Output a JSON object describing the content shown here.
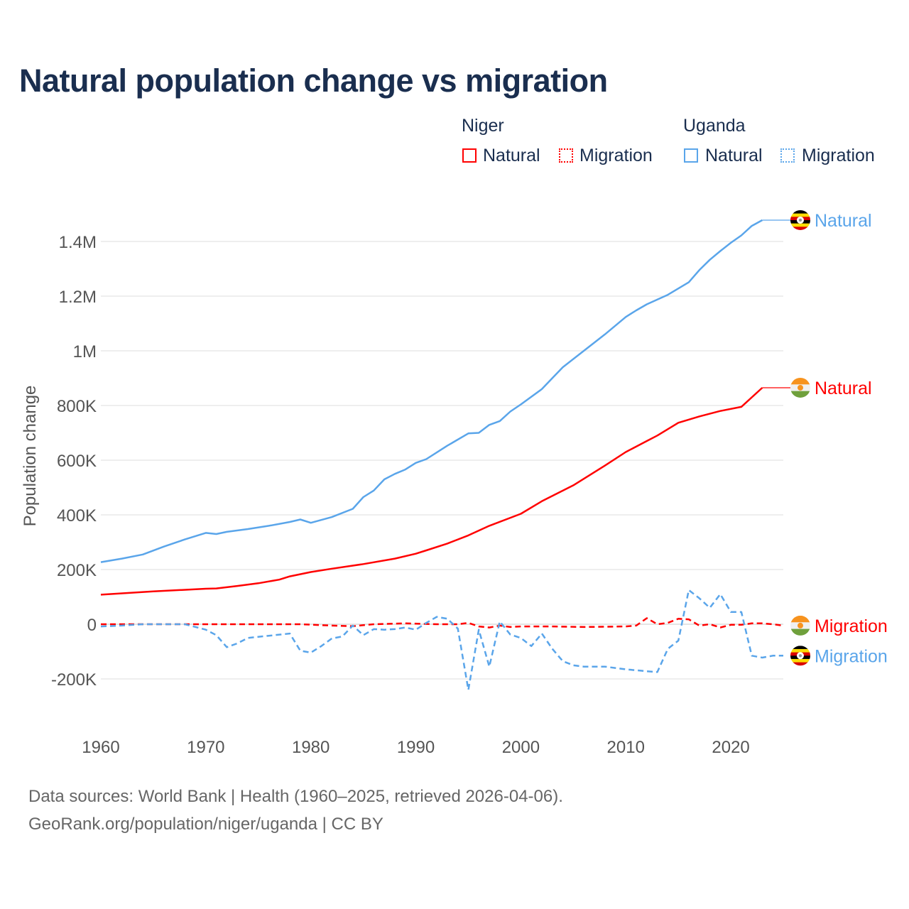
{
  "title": "Natural population change vs migration",
  "legend": {
    "groups": [
      {
        "name": "Niger",
        "items": [
          {
            "label": "Natural",
            "style": "solid"
          },
          {
            "label": "Migration",
            "style": "dotted"
          }
        ],
        "color": "#ff0000"
      },
      {
        "name": "Uganda",
        "items": [
          {
            "label": "Natural",
            "style": "solid"
          },
          {
            "label": "Migration",
            "style": "dotted"
          }
        ],
        "color": "#5aa5ea"
      }
    ]
  },
  "footer": {
    "line1": "Data sources: World Bank | Health (1960–2025, retrieved 2026-04-06).",
    "line2": "GeoRank.org/population/niger/uganda | CC BY"
  },
  "chart_data": {
    "type": "line",
    "title": "Natural population change vs migration",
    "xlabel": "",
    "ylabel": "Population change",
    "xlim": [
      1960,
      2025
    ],
    "ylim": [
      -300000,
      1500000
    ],
    "x_ticks": [
      {
        "v": 1960,
        "label": "1960"
      },
      {
        "v": 1970,
        "label": "1970"
      },
      {
        "v": 1980,
        "label": "1980"
      },
      {
        "v": 1990,
        "label": "1990"
      },
      {
        "v": 2000,
        "label": "2000"
      },
      {
        "v": 2010,
        "label": "2010"
      },
      {
        "v": 2020,
        "label": "2020"
      }
    ],
    "y_ticks": [
      {
        "v": -200000,
        "label": "-200K"
      },
      {
        "v": 0,
        "label": "0"
      },
      {
        "v": 200000,
        "label": "200K"
      },
      {
        "v": 400000,
        "label": "400K"
      },
      {
        "v": 600000,
        "label": "600K"
      },
      {
        "v": 800000,
        "label": "800K"
      },
      {
        "v": 1000000,
        "label": "1M"
      },
      {
        "v": 1200000,
        "label": "1.2M"
      },
      {
        "v": 1400000,
        "label": "1.4M"
      }
    ],
    "grid": true,
    "series": [
      {
        "name": "Uganda Natural",
        "end_label": "Natural",
        "country": "uganda",
        "color": "#5aa5ea",
        "dash": "solid",
        "points": [
          [
            1960,
            227000
          ],
          [
            1962,
            240000
          ],
          [
            1964,
            255000
          ],
          [
            1966,
            284000
          ],
          [
            1968,
            310000
          ],
          [
            1970,
            334000
          ],
          [
            1971,
            330000
          ],
          [
            1972,
            338000
          ],
          [
            1974,
            348000
          ],
          [
            1976,
            360000
          ],
          [
            1978,
            374000
          ],
          [
            1979,
            383000
          ],
          [
            1980,
            371000
          ],
          [
            1982,
            392000
          ],
          [
            1984,
            422000
          ],
          [
            1985,
            465000
          ],
          [
            1986,
            489000
          ],
          [
            1987,
            530000
          ],
          [
            1988,
            550000
          ],
          [
            1989,
            566000
          ],
          [
            1990,
            590000
          ],
          [
            1991,
            604000
          ],
          [
            1993,
            653000
          ],
          [
            1995,
            698000
          ],
          [
            1996,
            700000
          ],
          [
            1997,
            729000
          ],
          [
            1998,
            743000
          ],
          [
            1999,
            778000
          ],
          [
            2000,
            804000
          ],
          [
            2002,
            860000
          ],
          [
            2003,
            900000
          ],
          [
            2004,
            940000
          ],
          [
            2006,
            1000000
          ],
          [
            2008,
            1060000
          ],
          [
            2010,
            1124000
          ],
          [
            2011,
            1148000
          ],
          [
            2012,
            1170000
          ],
          [
            2014,
            1205000
          ],
          [
            2016,
            1251000
          ],
          [
            2017,
            1295000
          ],
          [
            2018,
            1333000
          ],
          [
            2019,
            1365000
          ],
          [
            2020,
            1395000
          ],
          [
            2021,
            1422000
          ],
          [
            2022,
            1457000
          ],
          [
            2023,
            1478000
          ]
        ]
      },
      {
        "name": "Niger Natural",
        "end_label": "Natural",
        "country": "niger",
        "color": "#ff0000",
        "dash": "solid",
        "points": [
          [
            1960,
            108000
          ],
          [
            1965,
            120000
          ],
          [
            1970,
            130000
          ],
          [
            1971,
            131000
          ],
          [
            1973,
            140000
          ],
          [
            1975,
            150000
          ],
          [
            1977,
            163000
          ],
          [
            1978,
            175000
          ],
          [
            1980,
            191000
          ],
          [
            1982,
            203000
          ],
          [
            1985,
            220000
          ],
          [
            1988,
            240000
          ],
          [
            1990,
            258000
          ],
          [
            1991,
            270000
          ],
          [
            1993,
            295000
          ],
          [
            1995,
            325000
          ],
          [
            1997,
            360000
          ],
          [
            2000,
            404000
          ],
          [
            2002,
            450000
          ],
          [
            2005,
            508000
          ],
          [
            2008,
            580000
          ],
          [
            2010,
            630000
          ],
          [
            2012,
            670000
          ],
          [
            2013,
            690000
          ],
          [
            2015,
            737000
          ],
          [
            2017,
            760000
          ],
          [
            2019,
            780000
          ],
          [
            2021,
            795000
          ],
          [
            2023,
            865000
          ]
        ]
      },
      {
        "name": "Niger Migration",
        "end_label": "Migration",
        "country": "niger",
        "color": "#ff0000",
        "dash": "dashed",
        "points": [
          [
            1960,
            0
          ],
          [
            1970,
            0
          ],
          [
            1975,
            0
          ],
          [
            1979,
            0
          ],
          [
            1982,
            -5000
          ],
          [
            1984,
            -7000
          ],
          [
            1986,
            0
          ],
          [
            1989,
            3000
          ],
          [
            1992,
            0
          ],
          [
            1994,
            0
          ],
          [
            1995,
            5000
          ],
          [
            1996,
            -8000
          ],
          [
            1997,
            -12000
          ],
          [
            1998,
            -5000
          ],
          [
            1999,
            -10000
          ],
          [
            2000,
            -8000
          ],
          [
            2003,
            -8000
          ],
          [
            2006,
            -10000
          ],
          [
            2010,
            -8000
          ],
          [
            2011,
            -5000
          ],
          [
            2012,
            22000
          ],
          [
            2013,
            0
          ],
          [
            2014,
            5000
          ],
          [
            2015,
            20000
          ],
          [
            2016,
            18000
          ],
          [
            2017,
            -5000
          ],
          [
            2018,
            0
          ],
          [
            2019,
            -12000
          ],
          [
            2020,
            -2000
          ],
          [
            2021,
            -2000
          ],
          [
            2022,
            3000
          ],
          [
            2023,
            3000
          ],
          [
            2024,
            0
          ],
          [
            2025,
            -5000
          ]
        ]
      },
      {
        "name": "Uganda Migration",
        "end_label": "Migration",
        "country": "uganda",
        "color": "#5aa5ea",
        "dash": "dashed",
        "points": [
          [
            1960,
            -8000
          ],
          [
            1962,
            -5000
          ],
          [
            1964,
            0
          ],
          [
            1968,
            0
          ],
          [
            1970,
            -20000
          ],
          [
            1971,
            -40000
          ],
          [
            1972,
            -84000
          ],
          [
            1973,
            -70000
          ],
          [
            1974,
            -50000
          ],
          [
            1976,
            -42000
          ],
          [
            1978,
            -34000
          ],
          [
            1979,
            -97000
          ],
          [
            1980,
            -104000
          ],
          [
            1981,
            -80000
          ],
          [
            1982,
            -52000
          ],
          [
            1983,
            -45000
          ],
          [
            1984,
            -5000
          ],
          [
            1985,
            -40000
          ],
          [
            1986,
            -18000
          ],
          [
            1987,
            -20000
          ],
          [
            1988,
            -18000
          ],
          [
            1989,
            -12000
          ],
          [
            1990,
            -20000
          ],
          [
            1991,
            5000
          ],
          [
            1992,
            27000
          ],
          [
            1993,
            20000
          ],
          [
            1994,
            -16000
          ],
          [
            1995,
            -240000
          ],
          [
            1996,
            -20000
          ],
          [
            1997,
            -155000
          ],
          [
            1998,
            10000
          ],
          [
            1999,
            -38000
          ],
          [
            2000,
            -50000
          ],
          [
            2001,
            -80000
          ],
          [
            2002,
            -34000
          ],
          [
            2003,
            -90000
          ],
          [
            2004,
            -135000
          ],
          [
            2005,
            -150000
          ],
          [
            2006,
            -155000
          ],
          [
            2008,
            -155000
          ],
          [
            2010,
            -165000
          ],
          [
            2012,
            -172000
          ],
          [
            2013,
            -175000
          ],
          [
            2014,
            -90000
          ],
          [
            2015,
            -60000
          ],
          [
            2016,
            125000
          ],
          [
            2017,
            95000
          ],
          [
            2018,
            60000
          ],
          [
            2019,
            110000
          ],
          [
            2020,
            45000
          ],
          [
            2021,
            45000
          ],
          [
            2022,
            -115000
          ],
          [
            2023,
            -122000
          ],
          [
            2024,
            -115000
          ],
          [
            2025,
            -115000
          ]
        ]
      }
    ]
  }
}
